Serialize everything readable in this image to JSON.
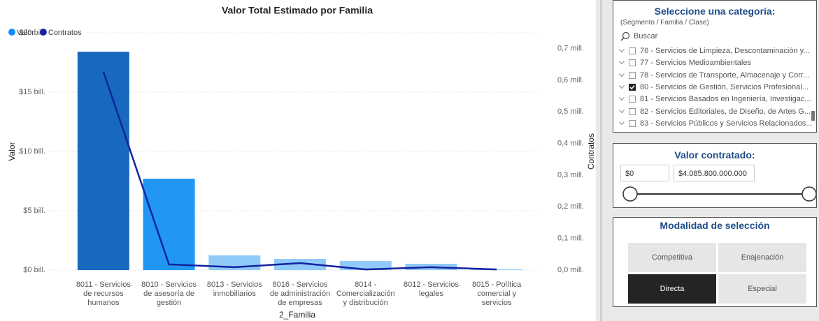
{
  "chart_data": {
    "type": "bar",
    "title": "Valor Total Estimado por Familia",
    "categories": [
      "8011 - Servicios de recursos humanos",
      "8010 - Servicios de asesoría de gestión",
      "8013 - Servicios inmobiliarios",
      "8016 - Servicios de administración de empresas",
      "8014 - Comercialización y distribución",
      "8012 - Servicios legales",
      "8015 - Política comercial y servicios"
    ],
    "series": [
      {
        "name": "Valor",
        "type": "bar",
        "color": "#118dff",
        "colors": [
          "#1868c0",
          "#2196f3",
          "#90caf9",
          "#90caf9",
          "#90caf9",
          "#90caf9",
          "#90caf9"
        ],
        "values": [
          18.4,
          7.7,
          1.24,
          0.94,
          0.76,
          0.53,
          0.06
        ]
      },
      {
        "name": "Contratos",
        "type": "line",
        "axis": "y2",
        "color": "#12239e",
        "values": [
          0.627,
          0.018,
          0.009,
          0.022,
          0.002,
          0.009,
          0.002
        ]
      }
    ],
    "x_label": "2_Familia",
    "y_label": "Valor",
    "y2_label": "Contratos",
    "ylim": [
      0,
      20
    ],
    "yticks": [
      {
        "value": 0,
        "label": "$0 bill."
      },
      {
        "value": 5,
        "label": "$5 bill."
      },
      {
        "value": 10,
        "label": "$10 bill."
      },
      {
        "value": 15,
        "label": "$15 bill."
      },
      {
        "value": 20,
        "label": "$20 bill."
      }
    ],
    "y2lim": [
      0,
      0.75
    ],
    "y2ticks": [
      {
        "value": 0,
        "label": "0,0 mill."
      },
      {
        "value": 0.1,
        "label": "0,1 mill."
      },
      {
        "value": 0.2,
        "label": "0,2 mill."
      },
      {
        "value": 0.3,
        "label": "0,3 mill."
      },
      {
        "value": 0.4,
        "label": "0,4 mill."
      },
      {
        "value": 0.5,
        "label": "0,5 mill."
      },
      {
        "value": 0.6,
        "label": "0,6 mill."
      },
      {
        "value": 0.7,
        "label": "0,7 mill."
      }
    ],
    "grid": true,
    "legend": "top-left"
  },
  "category_slicer": {
    "title": "Seleccione una categoría:",
    "subtitle": "(Segmento / Familia / Clase)",
    "search": "Buscar",
    "items": [
      {
        "label": "76 - Servicios de Limpieza, Descontaminación y...",
        "checked": false
      },
      {
        "label": "77 - Servicios Medioambientales",
        "checked": false
      },
      {
        "label": "78 - Servicios de Transporte, Almacenaje y Corr...",
        "checked": false
      },
      {
        "label": "80 - Servicios de Gestión, Servicios Profesional...",
        "checked": true
      },
      {
        "label": "81 - Servicios Basados en Ingeniería, Investigac...",
        "checked": false
      },
      {
        "label": "82 - Servicios Editoriales, de Diseño, de Artes G...",
        "checked": false
      },
      {
        "label": "83 - Servicios Públicos y Servicios Relacionados...",
        "checked": false
      }
    ]
  },
  "value_slicer": {
    "title": "Valor contratado:",
    "min": "$0",
    "max": "$4.085.800.000.000"
  },
  "mode_slicer": {
    "title": "Modalidad de selección",
    "options": [
      {
        "label": "Competitiva",
        "selected": false
      },
      {
        "label": "Enajenación",
        "selected": false
      },
      {
        "label": "Directa",
        "selected": true
      },
      {
        "label": "Especial",
        "selected": false
      }
    ]
  }
}
